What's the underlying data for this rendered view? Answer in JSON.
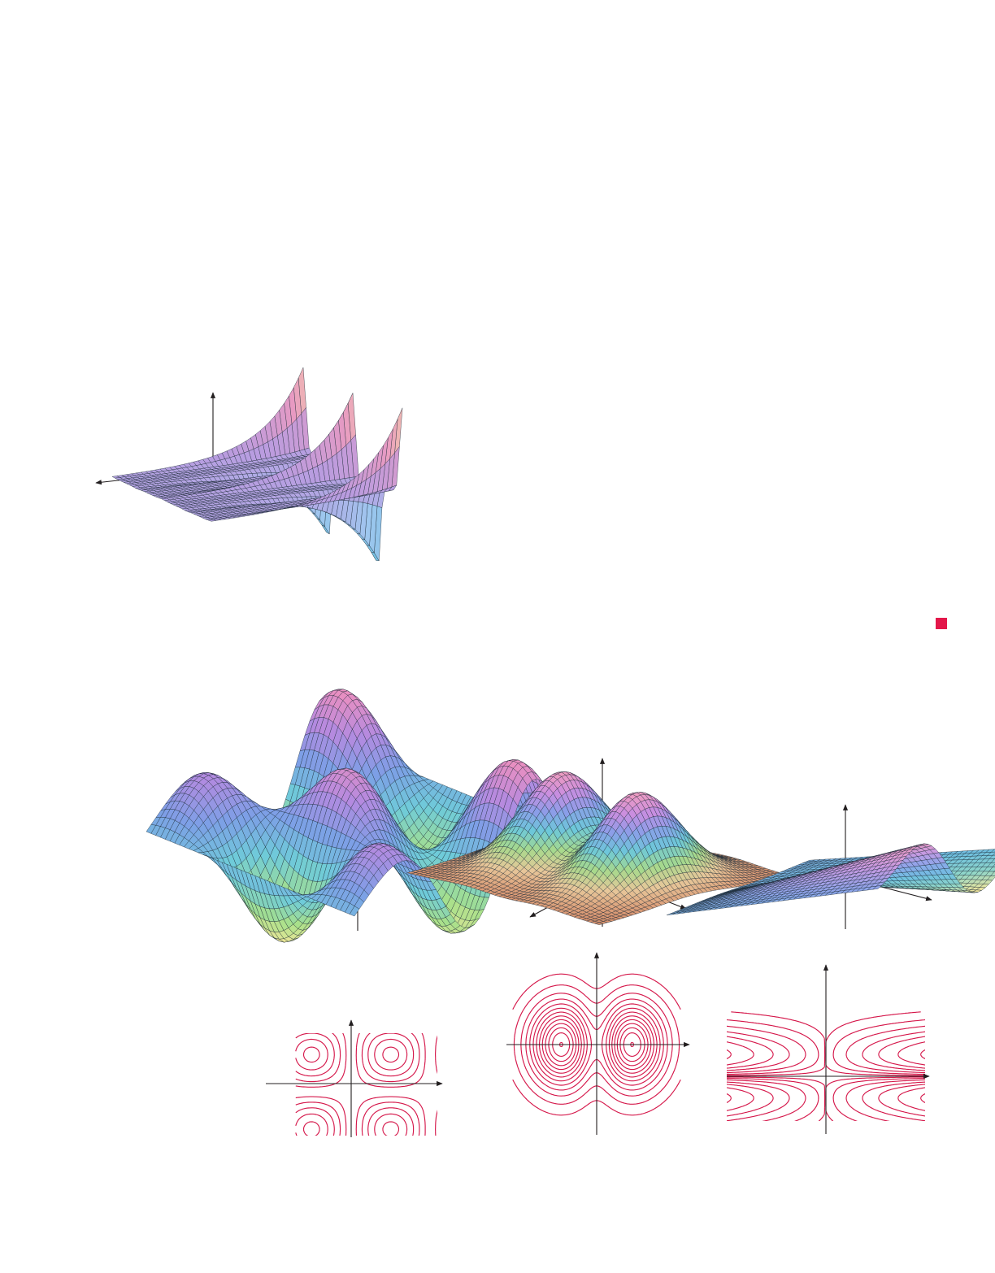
{
  "page": {
    "end_marker_color": "#e3174a",
    "contour_color": "#d5174a",
    "axis_color": "#231f20"
  },
  "figures": [
    {
      "id": "surface-decaying-ridges",
      "kind": "3d-surface",
      "palette": [
        "#6fc0e0",
        "#9fc7ef",
        "#b99ce0",
        "#e89ac2",
        "#f7d9a0"
      ]
    },
    {
      "id": "surface-wavy",
      "kind": "3d-surface",
      "palette": [
        "#f6e79a",
        "#a7e08a",
        "#6fcbd9",
        "#7d9fe6",
        "#b48ae0",
        "#eb8fc0"
      ]
    },
    {
      "id": "surface-twin-peaks",
      "kind": "3d-surface",
      "palette": [
        "#d99370",
        "#e7c79a",
        "#a7d98c",
        "#6dc8d9",
        "#8a9ee8",
        "#c98ee0",
        "#ef9cc0"
      ]
    },
    {
      "id": "surface-saddle-ridge",
      "kind": "3d-surface",
      "palette": [
        "#f3e69a",
        "#8fd6c9",
        "#6fc0e0",
        "#8da5ea",
        "#c69ae2",
        "#ee9cc6"
      ]
    },
    {
      "id": "contour-wavy",
      "kind": "contour-map"
    },
    {
      "id": "contour-twin-peaks",
      "kind": "contour-map"
    },
    {
      "id": "contour-saddle-ridge",
      "kind": "contour-map"
    }
  ]
}
